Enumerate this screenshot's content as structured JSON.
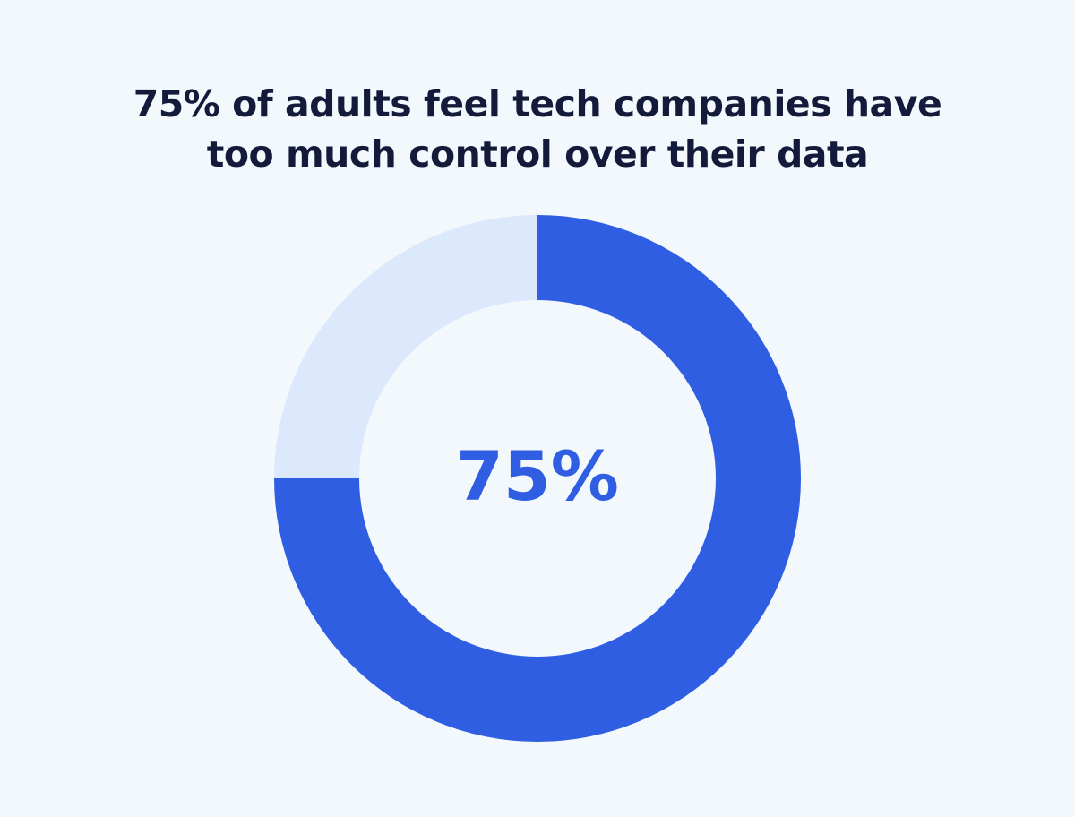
{
  "title_lines": [
    "75% of adults feel tech companies have",
    "too much control over their data"
  ],
  "chart_data": {
    "type": "pie",
    "variant": "donut",
    "title": "75% of adults feel tech companies have too much control over their data",
    "slices": [
      {
        "label": "",
        "value": 75,
        "color": "#2f5ee3"
      },
      {
        "label": "",
        "value": 25,
        "color": "#dce8fb"
      }
    ],
    "center_label": "75%",
    "center_label_color": "#2f5ee3"
  },
  "colors": {
    "background": "#f3f8fd",
    "title": "#141b3a"
  }
}
